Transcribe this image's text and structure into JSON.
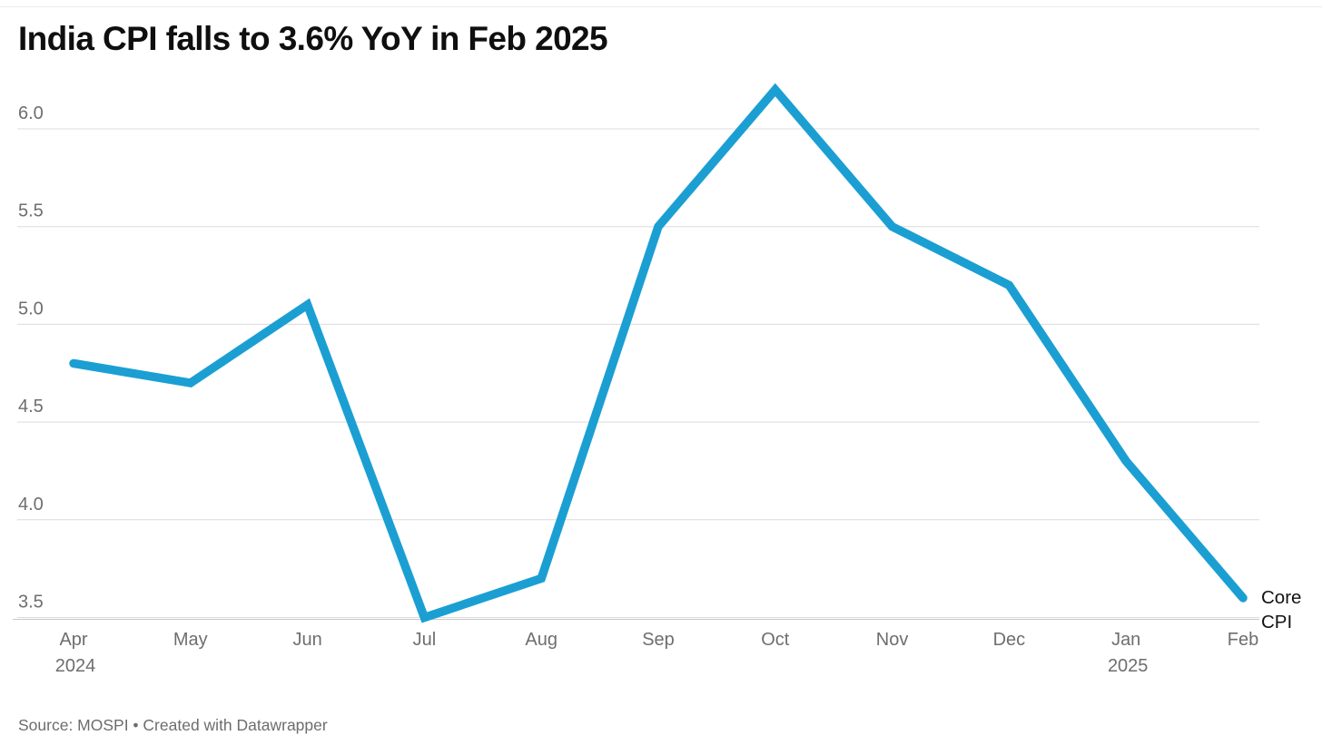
{
  "header": {
    "title": "India CPI falls to 3.6% YoY in Feb 2025"
  },
  "chart_data": {
    "type": "line",
    "title": "India CPI falls to 3.6% YoY in Feb 2025",
    "xlabel": "",
    "ylabel": "",
    "categories": [
      "Apr 2024",
      "May",
      "Jun",
      "Jul",
      "Aug",
      "Sep",
      "Oct",
      "Nov",
      "Dec",
      "Jan 2025",
      "Feb"
    ],
    "x_tick_lines": [
      {
        "label": "Apr",
        "sub": "2024"
      },
      {
        "label": "May",
        "sub": ""
      },
      {
        "label": "Jun",
        "sub": ""
      },
      {
        "label": "Jul",
        "sub": ""
      },
      {
        "label": "Aug",
        "sub": ""
      },
      {
        "label": "Sep",
        "sub": ""
      },
      {
        "label": "Oct",
        "sub": ""
      },
      {
        "label": "Nov",
        "sub": ""
      },
      {
        "label": "Dec",
        "sub": ""
      },
      {
        "label": "Jan",
        "sub": "2025"
      },
      {
        "label": "Feb",
        "sub": ""
      }
    ],
    "series": [
      {
        "name": "Core CPI",
        "values": [
          4.8,
          4.7,
          5.1,
          3.5,
          3.7,
          5.5,
          6.2,
          5.5,
          5.2,
          4.3,
          3.6
        ]
      }
    ],
    "end_label": "Core CPI",
    "y_ticks": [
      "6.0",
      "5.5",
      "5.0",
      "4.5",
      "4.0",
      "3.5"
    ],
    "ylim": [
      3.49,
      6.27
    ],
    "grid": true,
    "legend_position": "end-of-line",
    "colors": {
      "line": "#1b9fd3",
      "grid": "#dcdcdc",
      "baseline": "#c8c8c8",
      "tick_text": "#6e6e6e",
      "title_text": "#0f0f0f"
    }
  },
  "footer": {
    "source_text": "Source: MOSPI • Created with Datawrapper"
  }
}
